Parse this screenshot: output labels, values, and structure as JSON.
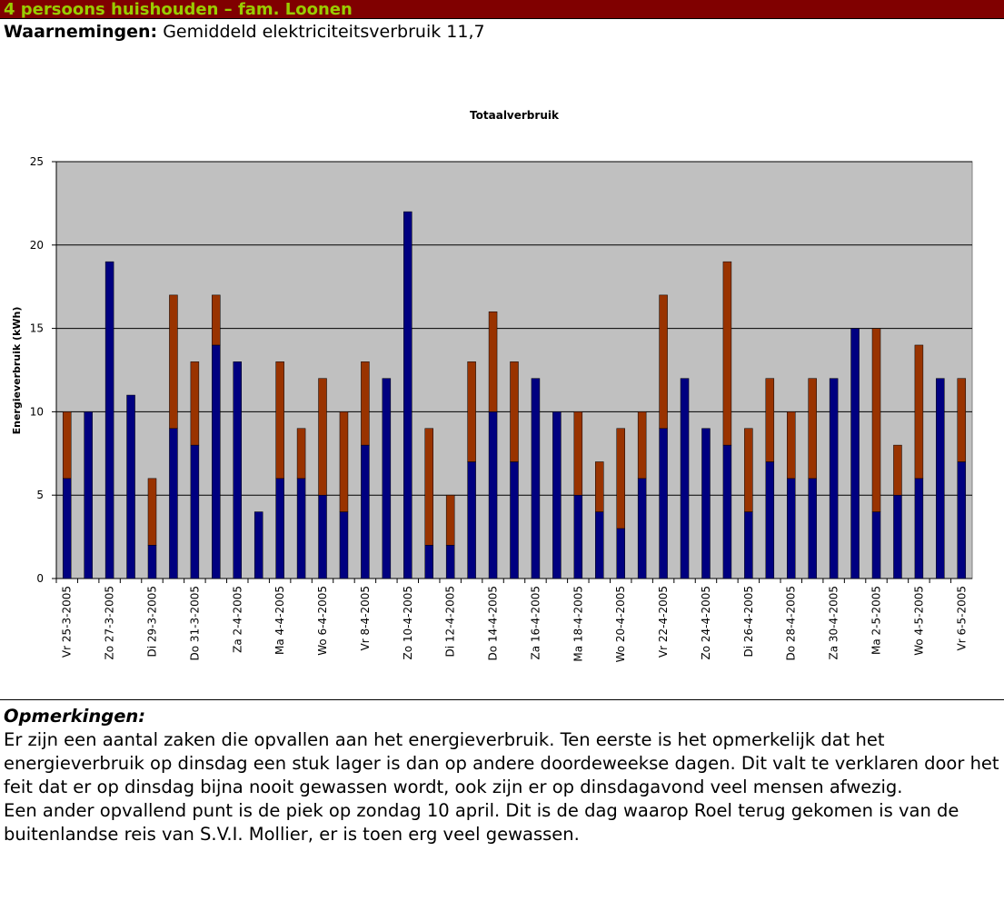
{
  "header": {
    "title": "4 persoons huishouden – fam. Loonen"
  },
  "observations": {
    "label": "Waarnemingen:",
    "text": "Gemiddeld elektriciteitsverbruik 11,7"
  },
  "chart_data": {
    "type": "stacked_bar",
    "title": "Totaalverbruik",
    "y_label": "Energieverbruik (kWh)",
    "categories": [
      "Vr 25-3-2005",
      null,
      "Zo 27-3-2005",
      null,
      "Di 29-3-2005",
      null,
      "Do 31-3-2005",
      null,
      "Za 2-4-2005",
      null,
      "Ma 4-4-2005",
      null,
      "Wo 6-4-2005",
      null,
      "Vr 8-4-2005",
      null,
      "Zo 10-4-2005",
      null,
      "Di 12-4-2005",
      null,
      "Do 14-4-2005",
      null,
      "Za 16-4-2005",
      null,
      "Ma 18-4-2005",
      null,
      "Wo 20-4-2005",
      null,
      "Vr 22-4-2005",
      null,
      "Zo 24-4-2005",
      null,
      "Di 26-4-2005",
      null,
      "Do 28-4-2005",
      null,
      "Za 30-4-2005",
      null,
      "Ma 2-5-2005",
      null,
      "Wo 4-5-2005",
      null,
      "Vr 6-5-2005"
    ],
    "series": [
      {
        "color": "#000080",
        "values": [
          6,
          10,
          19,
          11,
          2,
          9,
          8,
          14,
          13,
          4,
          6,
          6,
          5,
          4,
          8,
          12,
          22,
          2,
          2,
          7,
          10,
          7,
          12,
          10,
          5,
          4,
          3,
          6,
          9,
          12,
          9,
          8,
          4,
          7,
          6,
          6,
          12,
          15,
          4,
          5,
          6,
          12,
          7
        ]
      },
      {
        "color": "#993300",
        "values": [
          4,
          0,
          0,
          0,
          4,
          8,
          5,
          3,
          0,
          0,
          7,
          3,
          7,
          6,
          5,
          0,
          0,
          7,
          3,
          6,
          6,
          6,
          0,
          0,
          5,
          3,
          6,
          4,
          8,
          0,
          0,
          11,
          5,
          5,
          4,
          6,
          0,
          0,
          11,
          3,
          8,
          0,
          5
        ]
      }
    ],
    "ylim": [
      0,
      25
    ],
    "yticks": [
      0,
      5,
      10,
      15,
      20,
      25
    ],
    "grid": true,
    "background": "#c0c0c0"
  },
  "remarks": {
    "title": "Opmerkingen:",
    "paragraphs": [
      "Er zijn een aantal zaken die opvallen aan het energieverbruik. Ten eerste is het opmerkelijk dat het energieverbruik op dinsdag een stuk lager is dan op andere doordeweekse dagen. Dit valt te verklaren door het feit dat er op dinsdag bijna nooit gewassen wordt, ook zijn er op dinsdagavond veel mensen afwezig.",
      "Een ander opvallend punt is de piek op zondag 10 april. Dit is de dag waarop Roel terug gekomen is van de buitenlandse reis van S.V.I. Mollier, er is toen erg veel gewassen."
    ]
  }
}
